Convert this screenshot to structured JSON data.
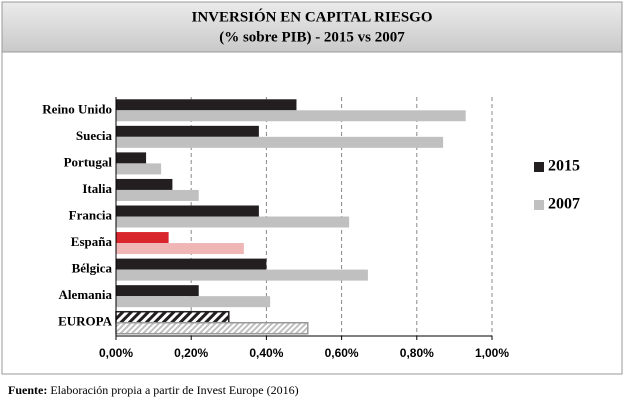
{
  "chart_data": {
    "type": "hbar",
    "title": [
      "INVERSIÓN EN CAPITAL RIESGO",
      "(% sobre PIB) - 2015 vs 2007"
    ],
    "categories": [
      "Reino Unido",
      "Suecia",
      "Portugal",
      "Italia",
      "Francia",
      "España",
      "Bélgica",
      "Alemania",
      "EUROPA"
    ],
    "series": [
      {
        "name": "2015",
        "color": "#231f20",
        "colors": [
          "#231f20",
          "#231f20",
          "#231f20",
          "#231f20",
          "#231f20",
          "#d9262c",
          "#231f20",
          "#231f20",
          "hatch-dark"
        ],
        "values": [
          0.48,
          0.38,
          0.08,
          0.15,
          0.38,
          0.14,
          0.4,
          0.22,
          0.3
        ]
      },
      {
        "name": "2007",
        "color": "#c0c0c0",
        "colors": [
          "#c0c0c0",
          "#c0c0c0",
          "#c0c0c0",
          "#c0c0c0",
          "#c0c0c0",
          "#f0b6b6",
          "#c0c0c0",
          "#c0c0c0",
          "hatch-light"
        ],
        "values": [
          0.93,
          0.87,
          0.12,
          0.22,
          0.62,
          0.34,
          0.67,
          0.41,
          0.51
        ]
      }
    ],
    "xlim": [
      0,
      1.0
    ],
    "xticks": [
      {
        "value": 0,
        "label": "0,00%"
      },
      {
        "value": 0.2,
        "label": "0,20%"
      },
      {
        "value": 0.4,
        "label": "0,40%"
      },
      {
        "value": 0.6,
        "label": "0,60%"
      },
      {
        "value": 0.8,
        "label": "0,80%"
      },
      {
        "value": 1.0,
        "label": "1,00%"
      }
    ],
    "grid": true,
    "legend": "right",
    "source": {
      "label": "Fuente:",
      "text": "Elaboración propia a partir de Invest Europe (2016)"
    }
  }
}
